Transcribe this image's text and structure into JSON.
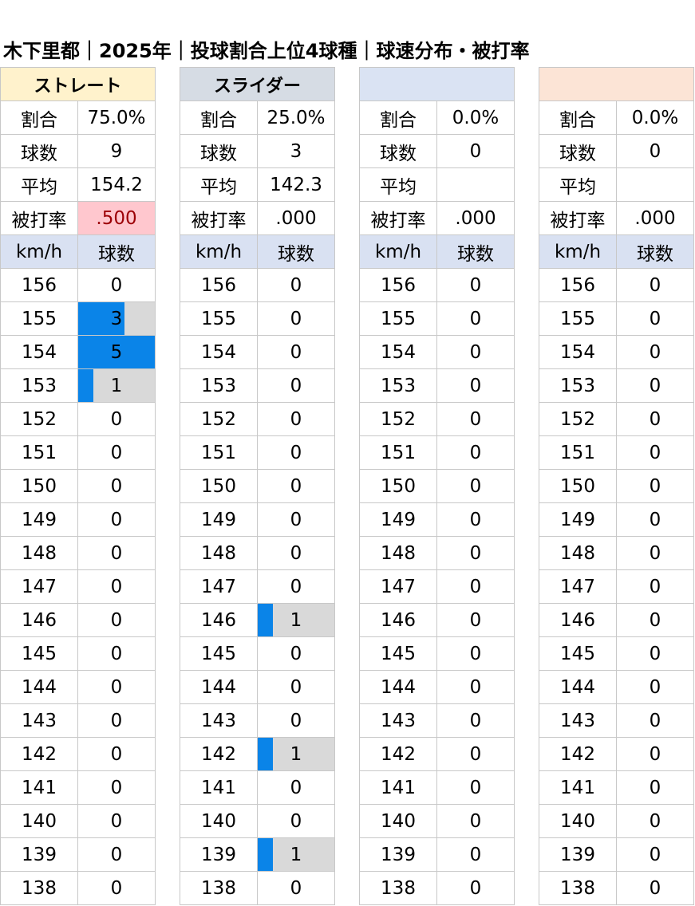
{
  "title": "木下里都｜2025年｜投球割合上位4球種｜球速分布・被打率",
  "labels": {
    "ratio": "割合",
    "count": "球数",
    "avg": "平均",
    "bavg": "被打率",
    "kmh": "km/h",
    "pitches": "球数"
  },
  "speeds": [
    156,
    155,
    154,
    153,
    152,
    151,
    150,
    149,
    148,
    147,
    146,
    145,
    144,
    143,
    142,
    141,
    140,
    139,
    138
  ],
  "colors": {
    "bar": "#0a84e8",
    "bar_bg": "#d9d9d9",
    "sub_header": "#d9e1f2",
    "highlight_bg": "#ffc7ce",
    "highlight_text": "#9c0006"
  },
  "panels": [
    {
      "name": "ストレート",
      "header_color": "#fff2cc",
      "ratio": "75.0%",
      "count": "9",
      "avg": "154.2",
      "bavg": ".500",
      "bavg_highlight": true,
      "dist": [
        0,
        3,
        5,
        1,
        0,
        0,
        0,
        0,
        0,
        0,
        0,
        0,
        0,
        0,
        0,
        0,
        0,
        0,
        0
      ],
      "max": 5
    },
    {
      "name": "スライダー",
      "header_color": "#d6dce4",
      "ratio": "25.0%",
      "count": "3",
      "avg": "142.3",
      "bavg": ".000",
      "bavg_highlight": false,
      "dist": [
        0,
        0,
        0,
        0,
        0,
        0,
        0,
        0,
        0,
        0,
        1,
        0,
        0,
        0,
        1,
        0,
        0,
        1,
        0
      ],
      "max": 5
    },
    {
      "name": "",
      "header_color": "#dae3f3",
      "ratio": "0.0%",
      "count": "0",
      "avg": "",
      "bavg": ".000",
      "bavg_highlight": false,
      "dist": [
        0,
        0,
        0,
        0,
        0,
        0,
        0,
        0,
        0,
        0,
        0,
        0,
        0,
        0,
        0,
        0,
        0,
        0,
        0
      ],
      "max": 5
    },
    {
      "name": "",
      "header_color": "#fce4d6",
      "ratio": "0.0%",
      "count": "0",
      "avg": "",
      "bavg": ".000",
      "bavg_highlight": false,
      "dist": [
        0,
        0,
        0,
        0,
        0,
        0,
        0,
        0,
        0,
        0,
        0,
        0,
        0,
        0,
        0,
        0,
        0,
        0,
        0
      ],
      "max": 5
    }
  ]
}
